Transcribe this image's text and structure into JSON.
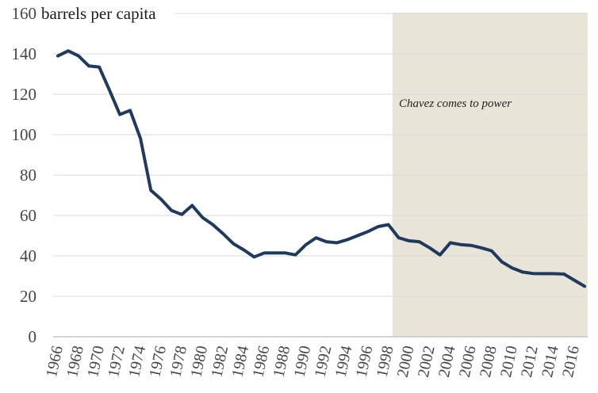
{
  "chart_data": {
    "type": "line",
    "title": "barrels per capita",
    "x": [
      1966,
      1967,
      1968,
      1969,
      1970,
      1971,
      1972,
      1973,
      1974,
      1975,
      1976,
      1977,
      1978,
      1979,
      1980,
      1981,
      1982,
      1983,
      1984,
      1985,
      1986,
      1987,
      1988,
      1989,
      1990,
      1991,
      1992,
      1993,
      1994,
      1995,
      1996,
      1997,
      1998,
      1999,
      2000,
      2001,
      2002,
      2003,
      2004,
      2005,
      2006,
      2007,
      2008,
      2009,
      2010,
      2011,
      2012,
      2013,
      2014,
      2015,
      2016,
      2017
    ],
    "values": [
      139,
      141.5,
      139,
      134,
      133.5,
      122,
      110,
      112,
      98,
      72.5,
      68,
      62.5,
      60.5,
      65,
      59,
      55.5,
      51,
      46,
      43,
      39.5,
      41.5,
      41.5,
      41.5,
      40.5,
      45.5,
      49,
      47,
      46.5,
      48,
      50,
      52,
      54.5,
      55.5,
      49,
      47.5,
      47,
      44,
      40.5,
      46.5,
      45.6,
      45.2,
      44,
      42.5,
      37,
      34,
      32,
      31.3,
      31.2,
      31.2,
      31,
      28,
      25
    ],
    "xticks": [
      1966,
      1968,
      1970,
      1972,
      1974,
      1976,
      1978,
      1980,
      1982,
      1984,
      1986,
      1988,
      1990,
      1992,
      1994,
      1996,
      1998,
      2000,
      2002,
      2004,
      2006,
      2008,
      2010,
      2012,
      2014,
      2016
    ],
    "yticks": [
      0,
      20,
      40,
      60,
      80,
      100,
      120,
      140,
      160
    ],
    "ylim": [
      0,
      160
    ],
    "xlim_years": [
      1965.54,
      2017.3
    ],
    "grid": "horizontal",
    "legend": "none",
    "annotation": {
      "text": "Chavez comes to power"
    },
    "shaded_region": {
      "from_year": 1998.4,
      "to_year": 2017.3
    }
  },
  "colors": {
    "line": "#1f3a5e",
    "shade": "#e8e5d8",
    "grid": "#d9d9d9",
    "axis": "#c4c4c4",
    "tick_text": "#45454d",
    "title_text": "#1b1b1b",
    "annotation_text": "#222222"
  }
}
